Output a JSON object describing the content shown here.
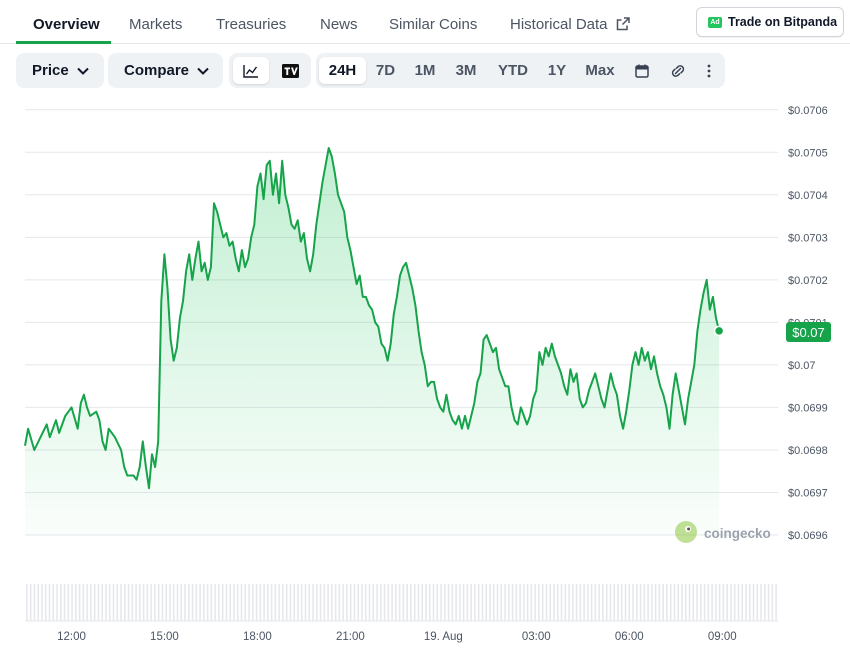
{
  "tabs": [
    {
      "label": "Overview",
      "active": true
    },
    {
      "label": "Markets"
    },
    {
      "label": "Treasuries"
    },
    {
      "label": "News"
    },
    {
      "label": "Similar Coins"
    },
    {
      "label": "Historical Data",
      "icon": "external-link-icon"
    }
  ],
  "ad_button": {
    "badge": "Ad",
    "label": "Trade on Bitpanda"
  },
  "toolbar": {
    "price_label": "Price",
    "compare_label": "Compare",
    "chart_types": [
      "line-chart-icon",
      "tradingview-icon"
    ],
    "ranges": [
      "24H",
      "7D",
      "1M",
      "3M",
      "YTD",
      "1Y",
      "Max"
    ],
    "selected_range": "24H",
    "tools": [
      "calendar-icon",
      "link-icon",
      "more-vertical-icon"
    ]
  },
  "current_price_label": "$0.07",
  "watermark": "coingecko",
  "colors": {
    "line": "#16a34a",
    "fill": "#22c55e",
    "badge": "#16a34a",
    "grid": "#e5e7eb",
    "text": "#4b5563"
  },
  "chart_data": {
    "type": "area",
    "title": "",
    "ylim": [
      0.0696,
      0.07063
    ],
    "y_ticks": [
      0.0706,
      0.0705,
      0.0704,
      0.0703,
      0.0702,
      0.0701,
      0.07,
      0.0699,
      0.0698,
      0.0697,
      0.0696
    ],
    "y_tick_labels": [
      "$0.0706",
      "$0.0705",
      "$0.0704",
      "$0.0703",
      "$0.0702",
      "$0.0701",
      "$0.07",
      "$0.0699",
      "$0.0698",
      "$0.0697",
      "$0.0696"
    ],
    "x_range_hours": [
      10.5,
      34.8
    ],
    "x_ticks": [
      {
        "hour": 12,
        "label": "12:00"
      },
      {
        "hour": 15,
        "label": "15:00"
      },
      {
        "hour": 18,
        "label": "18:00"
      },
      {
        "hour": 21,
        "label": "21:00"
      },
      {
        "hour": 24,
        "label": "19. Aug"
      },
      {
        "hour": 27,
        "label": "03:00"
      },
      {
        "hour": 30,
        "label": "06:00"
      },
      {
        "hour": 33,
        "label": "09:00"
      }
    ],
    "series": [
      {
        "points": [
          [
            10.5,
            0.06981
          ],
          [
            10.6,
            0.06985
          ],
          [
            10.8,
            0.0698
          ],
          [
            11.0,
            0.06983
          ],
          [
            11.2,
            0.06986
          ],
          [
            11.3,
            0.06983
          ],
          [
            11.5,
            0.06987
          ],
          [
            11.6,
            0.06984
          ],
          [
            11.8,
            0.06988
          ],
          [
            11.9,
            0.06989
          ],
          [
            12.0,
            0.0699
          ],
          [
            12.2,
            0.06985
          ],
          [
            12.3,
            0.06991
          ],
          [
            12.4,
            0.06993
          ],
          [
            12.5,
            0.0699
          ],
          [
            12.6,
            0.06988
          ],
          [
            12.8,
            0.06989
          ],
          [
            12.9,
            0.06987
          ],
          [
            13.0,
            0.06982
          ],
          [
            13.1,
            0.0698
          ],
          [
            13.2,
            0.06985
          ],
          [
            13.4,
            0.06983
          ],
          [
            13.6,
            0.0698
          ],
          [
            13.7,
            0.06976
          ],
          [
            13.8,
            0.06974
          ],
          [
            14.0,
            0.06974
          ],
          [
            14.1,
            0.06973
          ],
          [
            14.2,
            0.06976
          ],
          [
            14.3,
            0.06982
          ],
          [
            14.4,
            0.06976
          ],
          [
            14.5,
            0.06971
          ],
          [
            14.6,
            0.06979
          ],
          [
            14.7,
            0.06976
          ],
          [
            14.8,
            0.06982
          ],
          [
            14.9,
            0.07015
          ],
          [
            15.0,
            0.07026
          ],
          [
            15.1,
            0.07018
          ],
          [
            15.2,
            0.07006
          ],
          [
            15.3,
            0.07001
          ],
          [
            15.4,
            0.07004
          ],
          [
            15.5,
            0.07011
          ],
          [
            15.6,
            0.07015
          ],
          [
            15.7,
            0.07022
          ],
          [
            15.8,
            0.07026
          ],
          [
            15.9,
            0.0702
          ],
          [
            16.0,
            0.07025
          ],
          [
            16.1,
            0.07029
          ],
          [
            16.2,
            0.07022
          ],
          [
            16.3,
            0.07024
          ],
          [
            16.4,
            0.0702
          ],
          [
            16.5,
            0.07023
          ],
          [
            16.6,
            0.07038
          ],
          [
            16.7,
            0.07036
          ],
          [
            16.8,
            0.07033
          ],
          [
            16.9,
            0.0703
          ],
          [
            17.0,
            0.07031
          ],
          [
            17.1,
            0.07028
          ],
          [
            17.2,
            0.07029
          ],
          [
            17.3,
            0.07025
          ],
          [
            17.4,
            0.07022
          ],
          [
            17.5,
            0.07027
          ],
          [
            17.6,
            0.07023
          ],
          [
            17.7,
            0.07025
          ],
          [
            17.8,
            0.0703
          ],
          [
            17.9,
            0.07033
          ],
          [
            18.0,
            0.07042
          ],
          [
            18.1,
            0.07045
          ],
          [
            18.2,
            0.07039
          ],
          [
            18.3,
            0.07047
          ],
          [
            18.4,
            0.07048
          ],
          [
            18.5,
            0.0704
          ],
          [
            18.6,
            0.07045
          ],
          [
            18.7,
            0.07038
          ],
          [
            18.8,
            0.07048
          ],
          [
            18.9,
            0.0704
          ],
          [
            19.0,
            0.07037
          ],
          [
            19.1,
            0.07033
          ],
          [
            19.2,
            0.07032
          ],
          [
            19.3,
            0.07034
          ],
          [
            19.4,
            0.07029
          ],
          [
            19.5,
            0.07031
          ],
          [
            19.6,
            0.07025
          ],
          [
            19.7,
            0.07022
          ],
          [
            19.8,
            0.07026
          ],
          [
            19.9,
            0.07033
          ],
          [
            20.0,
            0.07038
          ],
          [
            20.1,
            0.07043
          ],
          [
            20.2,
            0.07047
          ],
          [
            20.3,
            0.07051
          ],
          [
            20.4,
            0.07049
          ],
          [
            20.5,
            0.07045
          ],
          [
            20.6,
            0.0704
          ],
          [
            20.7,
            0.07038
          ],
          [
            20.8,
            0.07036
          ],
          [
            20.9,
            0.0703
          ],
          [
            21.0,
            0.07027
          ],
          [
            21.1,
            0.07023
          ],
          [
            21.2,
            0.07019
          ],
          [
            21.3,
            0.07021
          ],
          [
            21.4,
            0.07016
          ],
          [
            21.5,
            0.07016
          ],
          [
            21.6,
            0.07014
          ],
          [
            21.7,
            0.07013
          ],
          [
            21.8,
            0.0701
          ],
          [
            21.9,
            0.07009
          ],
          [
            22.0,
            0.07005
          ],
          [
            22.1,
            0.07004
          ],
          [
            22.2,
            0.07001
          ],
          [
            22.3,
            0.07005
          ],
          [
            22.4,
            0.07012
          ],
          [
            22.5,
            0.07016
          ],
          [
            22.6,
            0.07021
          ],
          [
            22.7,
            0.07023
          ],
          [
            22.8,
            0.07024
          ],
          [
            22.9,
            0.07021
          ],
          [
            23.0,
            0.07018
          ],
          [
            23.1,
            0.07014
          ],
          [
            23.2,
            0.07008
          ],
          [
            23.3,
            0.07003
          ],
          [
            23.4,
            0.07
          ],
          [
            23.5,
            0.06995
          ],
          [
            23.6,
            0.06996
          ],
          [
            23.7,
            0.06996
          ],
          [
            23.8,
            0.06992
          ],
          [
            23.9,
            0.0699
          ],
          [
            24.0,
            0.06989
          ],
          [
            24.1,
            0.06993
          ],
          [
            24.2,
            0.06989
          ],
          [
            24.3,
            0.06987
          ],
          [
            24.4,
            0.06986
          ],
          [
            24.5,
            0.06988
          ],
          [
            24.6,
            0.06985
          ],
          [
            24.7,
            0.06988
          ],
          [
            24.8,
            0.06985
          ],
          [
            24.9,
            0.06988
          ],
          [
            25.0,
            0.06991
          ],
          [
            25.1,
            0.06996
          ],
          [
            25.2,
            0.06998
          ],
          [
            25.3,
            0.07006
          ],
          [
            25.4,
            0.07007
          ],
          [
            25.5,
            0.07005
          ],
          [
            25.6,
            0.07003
          ],
          [
            25.7,
            0.07004
          ],
          [
            25.8,
            0.06999
          ],
          [
            25.9,
            0.06997
          ],
          [
            26.0,
            0.06995
          ],
          [
            26.1,
            0.06995
          ],
          [
            26.2,
            0.0699
          ],
          [
            26.3,
            0.06987
          ],
          [
            26.4,
            0.06986
          ],
          [
            26.5,
            0.0699
          ],
          [
            26.6,
            0.06988
          ],
          [
            26.7,
            0.06986
          ],
          [
            26.8,
            0.06988
          ],
          [
            26.9,
            0.06992
          ],
          [
            27.0,
            0.06994
          ],
          [
            27.1,
            0.07003
          ],
          [
            27.2,
            0.07
          ],
          [
            27.3,
            0.07004
          ],
          [
            27.4,
            0.07002
          ],
          [
            27.5,
            0.07005
          ],
          [
            27.6,
            0.07002
          ],
          [
            27.7,
            0.07
          ],
          [
            27.8,
            0.06998
          ],
          [
            27.9,
            0.06995
          ],
          [
            28.0,
            0.06993
          ],
          [
            28.1,
            0.06999
          ],
          [
            28.2,
            0.06996
          ],
          [
            28.3,
            0.06998
          ],
          [
            28.4,
            0.06992
          ],
          [
            28.5,
            0.0699
          ],
          [
            28.6,
            0.06991
          ],
          [
            28.7,
            0.06994
          ],
          [
            28.8,
            0.06996
          ],
          [
            28.9,
            0.06998
          ],
          [
            29.0,
            0.06995
          ],
          [
            29.1,
            0.06992
          ],
          [
            29.2,
            0.0699
          ],
          [
            29.3,
            0.06994
          ],
          [
            29.4,
            0.06998
          ],
          [
            29.5,
            0.06995
          ],
          [
            29.6,
            0.06993
          ],
          [
            29.7,
            0.06988
          ],
          [
            29.8,
            0.06985
          ],
          [
            29.9,
            0.06989
          ],
          [
            30.0,
            0.06994
          ],
          [
            30.1,
            0.07
          ],
          [
            30.2,
            0.07003
          ],
          [
            30.3,
            0.07
          ],
          [
            30.4,
            0.07004
          ],
          [
            30.5,
            0.07001
          ],
          [
            30.6,
            0.07003
          ],
          [
            30.7,
            0.06999
          ],
          [
            30.8,
            0.07002
          ],
          [
            30.9,
            0.06998
          ],
          [
            31.0,
            0.06995
          ],
          [
            31.1,
            0.06993
          ],
          [
            31.2,
            0.0699
          ],
          [
            31.3,
            0.06985
          ],
          [
            31.4,
            0.06993
          ],
          [
            31.5,
            0.06998
          ],
          [
            31.6,
            0.06994
          ],
          [
            31.7,
            0.0699
          ],
          [
            31.8,
            0.06986
          ],
          [
            31.9,
            0.06992
          ],
          [
            32.0,
            0.06996
          ],
          [
            32.1,
            0.07
          ],
          [
            32.2,
            0.07008
          ],
          [
            32.3,
            0.07013
          ],
          [
            32.4,
            0.07017
          ],
          [
            32.5,
            0.0702
          ],
          [
            32.6,
            0.07013
          ],
          [
            32.7,
            0.07016
          ],
          [
            32.8,
            0.07011
          ],
          [
            32.9,
            0.07008
          ]
        ]
      }
    ],
    "volume_bars": 200
  }
}
